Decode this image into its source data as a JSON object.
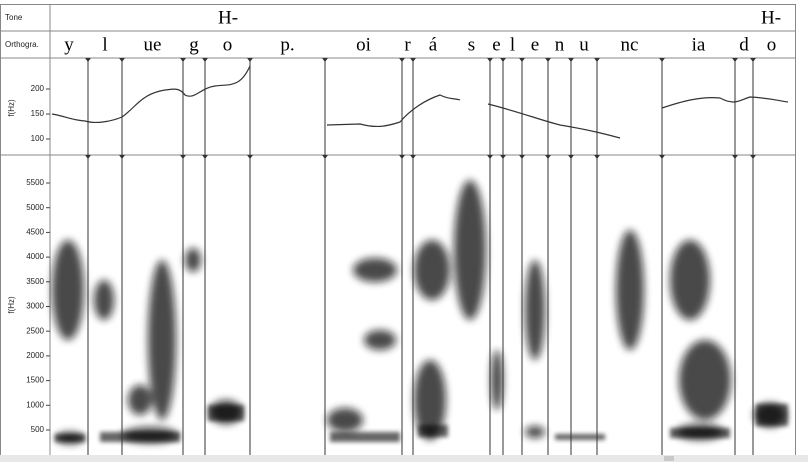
{
  "tiers": {
    "tone": {
      "label": "Tone",
      "marks": [
        "H-",
        "H-"
      ]
    },
    "orthography": {
      "label": "Orthogra.",
      "segments": [
        "y",
        "l",
        "ue",
        "g",
        "o",
        "p.",
        "oi",
        "r",
        "á",
        "s",
        "e",
        "l",
        "e",
        "n",
        "u",
        "nc",
        "ia",
        "d",
        "o"
      ]
    }
  },
  "pitch_axis": {
    "label": "f(Hz)",
    "ticks": [
      100,
      150,
      200
    ]
  },
  "spectrogram_axis": {
    "label": "f(Hz)",
    "ticks": [
      500,
      1000,
      1500,
      2000,
      2500,
      3000,
      3500,
      4000,
      4500,
      5000,
      5500
    ]
  }
}
